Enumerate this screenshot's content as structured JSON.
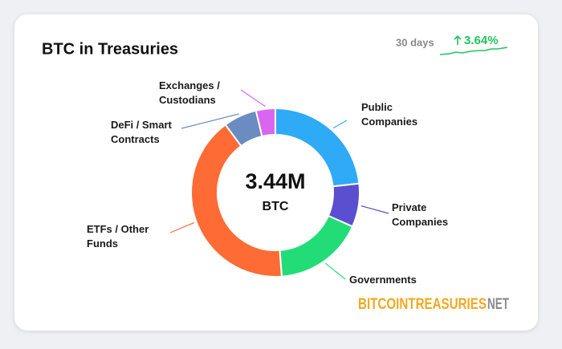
{
  "chart_data": {
    "type": "donut",
    "title": "BTC in Treasuries",
    "period": "30 days",
    "change": "3.64%",
    "center_value": "3.44M",
    "center_unit": "BTC",
    "brand": "BITCOINTREASURIES",
    "brand_suffix": "NET",
    "categories": [
      "Public Companies",
      "Private Companies",
      "Governments",
      "ETFs / Other Funds",
      "DeFi / Smart Contracts",
      "Exchanges / Custodians"
    ],
    "values": [
      23.3,
      8.3,
      17.2,
      41.1,
      6.4,
      3.7
    ],
    "colors": [
      "#2eaaf7",
      "#5a4fcf",
      "#22dd77",
      "#ff6b35",
      "#6b8cc0",
      "#d966f0"
    ]
  }
}
